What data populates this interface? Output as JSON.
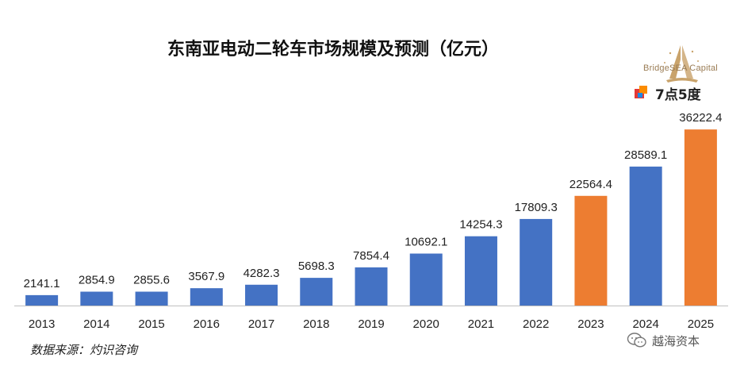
{
  "chart_data": {
    "type": "bar",
    "title": "东南亚电动二轮车市场规模及预测（亿元）",
    "categories": [
      "2013",
      "2014",
      "2015",
      "2016",
      "2017",
      "2018",
      "2019",
      "2020",
      "2021",
      "2022",
      "2023",
      "2024",
      "2025"
    ],
    "values": [
      2141.1,
      2854.9,
      2855.6,
      3567.9,
      4282.3,
      5698.3,
      7854.4,
      10692.1,
      14254.3,
      17809.3,
      22564.4,
      28589.1,
      36222.4
    ],
    "value_labels": [
      "2141.1",
      "2854.9",
      "2855.6",
      "3567.9",
      "4282.3",
      "5698.3",
      "7854.4",
      "10692.1",
      "14254.3",
      "17809.3",
      "22564.4",
      "28589.1",
      "36222.4"
    ],
    "bar_colors": [
      "#4472c4",
      "#4472c4",
      "#4472c4",
      "#4472c4",
      "#4472c4",
      "#4472c4",
      "#4472c4",
      "#4472c4",
      "#4472c4",
      "#4472c4",
      "#ed7d31",
      "#4472c4",
      "#ed7d31"
    ],
    "xlabel": "",
    "ylabel": "",
    "ylim": [
      0,
      40000
    ],
    "grid": false,
    "legend": "none",
    "axis_color": "#bfbfbf"
  },
  "branding": {
    "logo_text": "BridgeSEA Capital",
    "partner_text": "7点5度"
  },
  "footer": {
    "source": "数据来源：灼识咨询",
    "watermark": "越海资本"
  }
}
